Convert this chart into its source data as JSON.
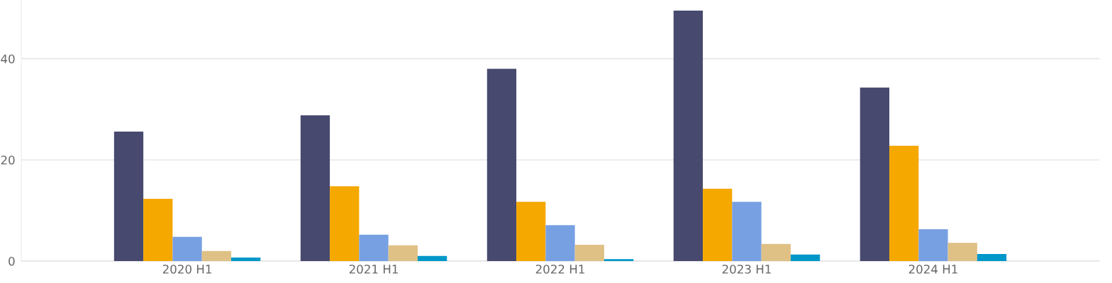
{
  "chart_data": {
    "type": "bar",
    "categories": [
      "2020 H1",
      "2021 H1",
      "2022 H1",
      "2023 H1",
      "2024 H1"
    ],
    "series": [
      {
        "color": "#474a6e",
        "values": [
          25.6,
          28.8,
          38.0,
          49.5,
          34.3
        ]
      },
      {
        "color": "#f5a800",
        "values": [
          12.3,
          14.8,
          11.7,
          14.3,
          22.8
        ]
      },
      {
        "color": "#77a0e3",
        "values": [
          4.8,
          5.2,
          7.1,
          11.7,
          6.3
        ]
      },
      {
        "color": "#dfc185",
        "values": [
          2.0,
          3.1,
          3.2,
          3.4,
          3.6
        ]
      },
      {
        "color": "#0097c9",
        "values": [
          0.7,
          1.0,
          0.4,
          1.3,
          1.4
        ]
      }
    ],
    "ylim": [
      0,
      51.6
    ],
    "yticks": [
      0,
      20,
      40
    ],
    "grid": "y",
    "legend": false
  }
}
